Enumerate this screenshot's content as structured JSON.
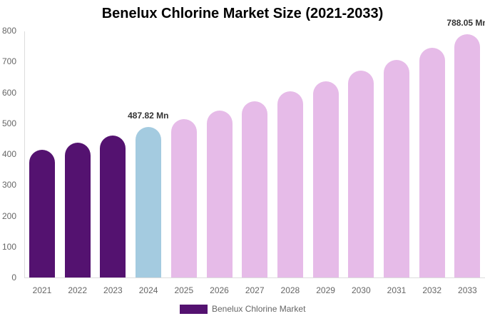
{
  "chart_data": {
    "type": "bar",
    "title": "Benelux Chlorine Market Size (2021-2033)",
    "xlabel": "",
    "ylabel": "",
    "ylim": [
      0,
      800
    ],
    "yticks": [
      0,
      100,
      200,
      300,
      400,
      500,
      600,
      700,
      800
    ],
    "categories": [
      "2021",
      "2022",
      "2023",
      "2024",
      "2025",
      "2026",
      "2027",
      "2028",
      "2029",
      "2030",
      "2031",
      "2032",
      "2033"
    ],
    "series": [
      {
        "name": "Benelux Chlorine Market",
        "values": [
          414,
          437,
          460,
          487.82,
          513,
          541,
          571,
          603,
          636,
          670,
          705,
          744,
          788.05
        ]
      }
    ],
    "bar_colors": [
      "#541270",
      "#541270",
      "#541270",
      "#a4cbe0",
      "#e6bbe8",
      "#e6bbe8",
      "#e6bbe8",
      "#e6bbe8",
      "#e6bbe8",
      "#e6bbe8",
      "#e6bbe8",
      "#e6bbe8",
      "#e6bbe8"
    ],
    "annotations": [
      {
        "category": "2024",
        "text": "487.82 Mn"
      },
      {
        "category": "2033",
        "text": "788.05 Mn"
      }
    ],
    "grid": false,
    "legend_position": "bottom"
  },
  "legend": {
    "label": "Benelux Chlorine Market",
    "color": "#541270"
  }
}
